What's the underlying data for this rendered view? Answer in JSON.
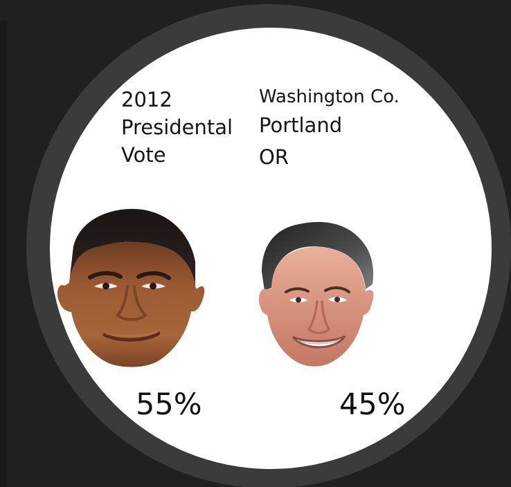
{
  "header": {
    "title_lines": [
      "2012",
      "Presidental",
      "Vote"
    ]
  },
  "location": {
    "county": "Washington Co.",
    "city": "Portland",
    "state": "OR"
  },
  "candidates": [
    {
      "percent": "55%"
    },
    {
      "percent": "45%"
    }
  ],
  "colors": {
    "background": "#202020",
    "bezel": "#3b3b3b",
    "face": "#ffffff",
    "text": "#151515"
  }
}
